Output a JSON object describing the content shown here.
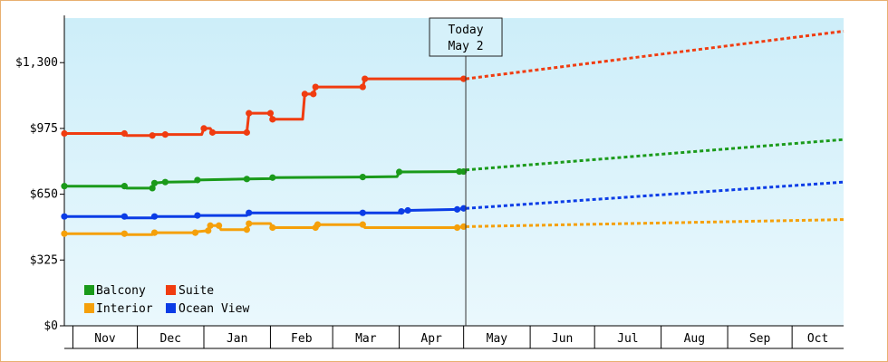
{
  "chart_data": {
    "type": "line",
    "title": "",
    "xlabel": "",
    "ylabel": "",
    "y_ticks": [
      "$0",
      "$325",
      "$650",
      "$975",
      "$1,300"
    ],
    "y_tick_values": [
      0,
      325,
      650,
      975,
      1300
    ],
    "ylim": [
      0,
      1520
    ],
    "x_months": [
      "Nov",
      "Dec",
      "Jan",
      "Feb",
      "Mar",
      "Apr",
      "May",
      "Jun",
      "Jul",
      "Aug",
      "Sep",
      "Oct"
    ],
    "x_range": [
      "2023-10-28",
      "2024-10-25"
    ],
    "today_marker": {
      "date": "2024-05-02",
      "label_line1": "Today",
      "label_line2": "May 2"
    },
    "grid": false,
    "background_gradient": [
      "#cdeef9",
      "#eaf8fd"
    ],
    "legend_position": "bottom-left",
    "series": [
      {
        "name": "Balcony",
        "color": "#1a9a1a",
        "history": [
          [
            "2023-10-28",
            690
          ],
          [
            "2023-11-25",
            690
          ],
          [
            "2023-11-26",
            680
          ],
          [
            "2023-12-08",
            680
          ],
          [
            "2023-12-09",
            705
          ],
          [
            "2023-12-14",
            710
          ],
          [
            "2023-12-28",
            712
          ],
          [
            "2023-12-29",
            720
          ],
          [
            "2024-01-21",
            725
          ],
          [
            "2024-02-01",
            727
          ],
          [
            "2024-02-02",
            732
          ],
          [
            "2024-03-15",
            735
          ],
          [
            "2024-03-31",
            737
          ],
          [
            "2024-04-01",
            760
          ],
          [
            "2024-04-29",
            762
          ],
          [
            "2024-05-01",
            762
          ]
        ],
        "forecast": [
          [
            "2024-05-02",
            770
          ],
          [
            "2024-10-25",
            920
          ]
        ]
      },
      {
        "name": "Suite",
        "color": "#f03c10",
        "history": [
          [
            "2023-10-28",
            950
          ],
          [
            "2023-11-25",
            950
          ],
          [
            "2023-11-26",
            940
          ],
          [
            "2023-12-08",
            940
          ],
          [
            "2023-12-09",
            945
          ],
          [
            "2023-12-14",
            945
          ],
          [
            "2023-12-31",
            945
          ],
          [
            "2024-01-01",
            975
          ],
          [
            "2024-01-04",
            975
          ],
          [
            "2024-01-05",
            955
          ],
          [
            "2024-01-21",
            955
          ],
          [
            "2024-01-22",
            1050
          ],
          [
            "2024-02-01",
            1050
          ],
          [
            "2024-02-02",
            1020
          ],
          [
            "2024-02-16",
            1020
          ],
          [
            "2024-02-17",
            1145
          ],
          [
            "2024-02-21",
            1145
          ],
          [
            "2024-02-22",
            1180
          ],
          [
            "2024-03-15",
            1180
          ],
          [
            "2024-03-16",
            1220
          ],
          [
            "2024-05-01",
            1220
          ]
        ],
        "forecast": [
          [
            "2024-05-02",
            1220
          ],
          [
            "2024-10-25",
            1455
          ]
        ]
      },
      {
        "name": "Interior",
        "color": "#f5a00a",
        "history": [
          [
            "2023-10-28",
            455
          ],
          [
            "2023-11-25",
            455
          ],
          [
            "2023-11-26",
            450
          ],
          [
            "2023-12-08",
            450
          ],
          [
            "2023-12-09",
            460
          ],
          [
            "2023-12-28",
            460
          ],
          [
            "2023-12-29",
            465
          ],
          [
            "2024-01-03",
            470
          ],
          [
            "2024-01-04",
            495
          ],
          [
            "2024-01-08",
            495
          ],
          [
            "2024-01-09",
            475
          ],
          [
            "2024-01-21",
            475
          ],
          [
            "2024-01-22",
            505
          ],
          [
            "2024-02-01",
            505
          ],
          [
            "2024-02-02",
            485
          ],
          [
            "2024-02-22",
            485
          ],
          [
            "2024-02-23",
            500
          ],
          [
            "2024-03-15",
            500
          ],
          [
            "2024-03-16",
            485
          ],
          [
            "2024-04-28",
            485
          ],
          [
            "2024-05-01",
            490
          ]
        ],
        "forecast": [
          [
            "2024-05-02",
            490
          ],
          [
            "2024-10-25",
            525
          ]
        ]
      },
      {
        "name": "Ocean View",
        "color": "#0b3ce6",
        "history": [
          [
            "2023-10-28",
            540
          ],
          [
            "2023-11-25",
            540
          ],
          [
            "2023-11-26",
            533
          ],
          [
            "2023-12-08",
            533
          ],
          [
            "2023-12-09",
            540
          ],
          [
            "2023-12-28",
            540
          ],
          [
            "2023-12-29",
            545
          ],
          [
            "2024-01-21",
            545
          ],
          [
            "2024-01-22",
            558
          ],
          [
            "2024-04-01",
            558
          ],
          [
            "2024-04-02",
            565
          ],
          [
            "2024-04-05",
            570
          ],
          [
            "2024-04-28",
            575
          ],
          [
            "2024-05-01",
            580
          ]
        ],
        "forecast": [
          [
            "2024-05-02",
            580
          ],
          [
            "2024-10-25",
            710
          ]
        ]
      }
    ],
    "change_markers": {
      "Balcony": [
        "2023-10-28",
        "2023-11-25",
        "2023-12-08",
        "2023-12-09",
        "2023-12-14",
        "2023-12-29",
        "2024-01-21",
        "2024-02-02",
        "2024-03-15",
        "2024-04-01",
        "2024-04-29",
        "2024-05-01"
      ],
      "Suite": [
        "2023-10-28",
        "2023-11-25",
        "2023-12-08",
        "2023-12-14",
        "2024-01-01",
        "2024-01-05",
        "2024-01-21",
        "2024-01-22",
        "2024-02-01",
        "2024-02-02",
        "2024-02-17",
        "2024-02-21",
        "2024-02-22",
        "2024-03-15",
        "2024-03-16",
        "2024-05-01"
      ],
      "Interior": [
        "2023-10-28",
        "2023-11-25",
        "2023-12-09",
        "2023-12-28",
        "2024-01-03",
        "2024-01-04",
        "2024-01-08",
        "2024-01-21",
        "2024-01-22",
        "2024-02-02",
        "2024-02-22",
        "2024-02-23",
        "2024-03-15",
        "2024-04-28",
        "2024-05-01"
      ],
      "Ocean View": [
        "2023-10-28",
        "2023-11-25",
        "2023-12-09",
        "2023-12-29",
        "2024-01-22",
        "2024-03-15",
        "2024-04-02",
        "2024-04-05",
        "2024-04-28",
        "2024-05-01"
      ]
    },
    "legend": [
      {
        "name": "Balcony",
        "color": "#1a9a1a"
      },
      {
        "name": "Suite",
        "color": "#f03c10"
      },
      {
        "name": "Interior",
        "color": "#f5a00a"
      },
      {
        "name": "Ocean View",
        "color": "#0b3ce6"
      }
    ]
  }
}
